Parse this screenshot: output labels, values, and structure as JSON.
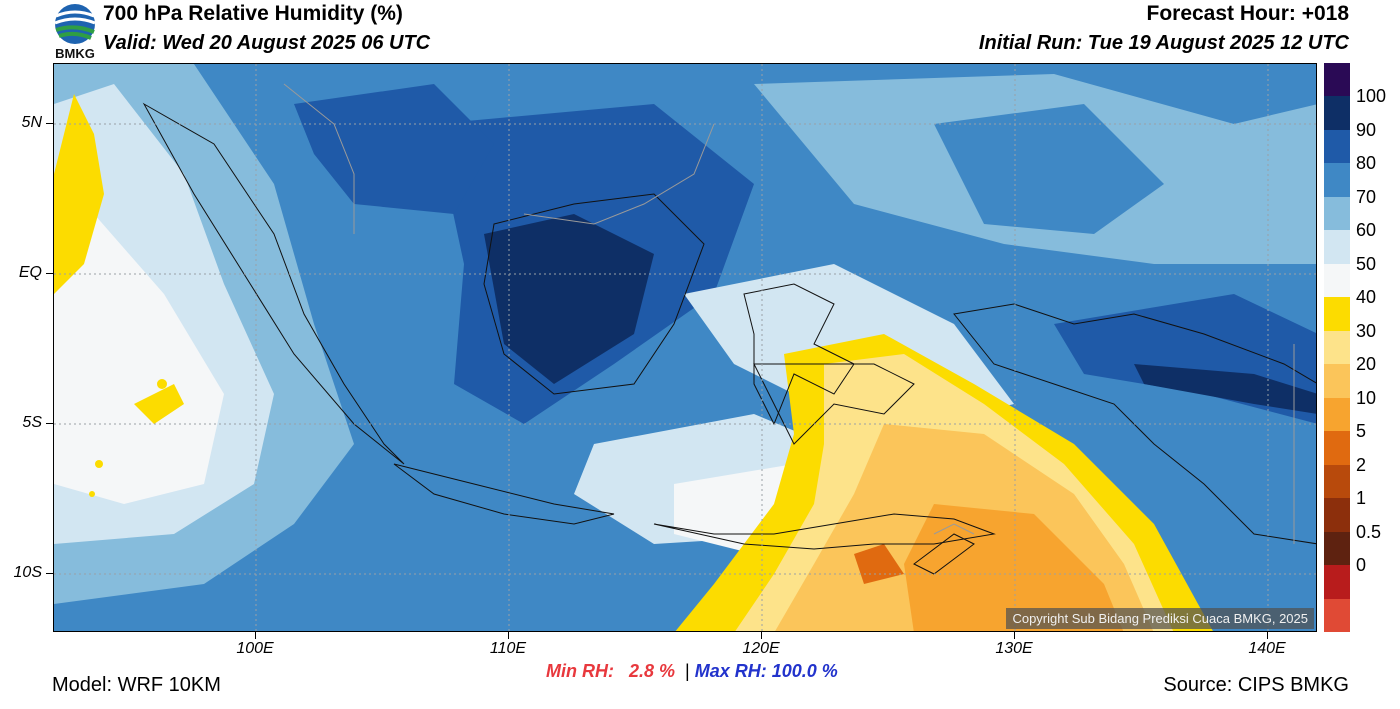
{
  "header": {
    "title": "700 hPa Relative Humidity (%)",
    "valid": "Valid: Wed 20 August 2025 06 UTC",
    "forecast_hour": "Forecast Hour: +018",
    "initial_run": "Initial Run: Tue 19 August 2025 12 UTC",
    "logo_text": "BMKG"
  },
  "map": {
    "lat_labels": [
      "5N",
      "EQ",
      "5S",
      "10S"
    ],
    "lon_labels": [
      "100E",
      "110E",
      "120E",
      "130E",
      "140E"
    ],
    "copyright": "Copyright Sub Bidang Prediksi Cuaca BMKG, 2025"
  },
  "colorbar": {
    "labels": [
      "100",
      "90",
      "80",
      "70",
      "60",
      "50",
      "40",
      "30",
      "20",
      "10",
      "5",
      "2",
      "1",
      "0.5",
      "0"
    ],
    "colors": [
      "#2a0a55",
      "#0e2f66",
      "#1f5aa8",
      "#3f88c5",
      "#86bcdc",
      "#d2e6f2",
      "#f5f7f8",
      "#fcdc00",
      "#fde38a",
      "#fbc55a",
      "#f7a42f",
      "#e06a10",
      "#b84a0c",
      "#8c2f0c",
      "#5e2210",
      "#b81c1c",
      "#e04a35"
    ]
  },
  "stats": {
    "min_rh": "Min RH:   2.8 %",
    "separator": "|",
    "max_rh": "Max RH: 100.0 %"
  },
  "footer": {
    "model": "Model: WRF 10KM",
    "source": "Source: CIPS BMKG"
  }
}
